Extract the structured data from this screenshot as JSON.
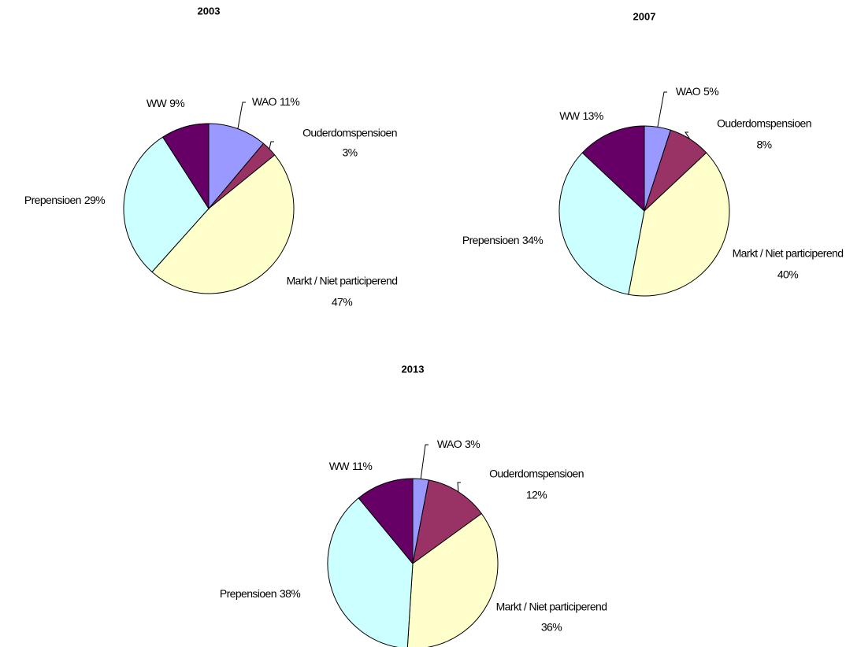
{
  "chart_data": [
    {
      "type": "pie",
      "title": "2003",
      "categories": [
        "WAO",
        "Ouderdomspensioen",
        "Markt / Niet participerend",
        "Prepensioen",
        "WW"
      ],
      "values": [
        11,
        3,
        47,
        29,
        9
      ],
      "value_labels": [
        "11%",
        "3%",
        "47%",
        "29%",
        "9%"
      ],
      "colors": [
        "#9999ff",
        "#993366",
        "#ffffcc",
        "#ccffff",
        "#660066"
      ]
    },
    {
      "type": "pie",
      "title": "2007",
      "categories": [
        "WAO",
        "Ouderdomspensioen",
        "Markt / Niet participerend",
        "Prepensioen",
        "WW"
      ],
      "values": [
        5,
        8,
        40,
        34,
        13
      ],
      "value_labels": [
        "5%",
        "8%",
        "40%",
        "34%",
        "13%"
      ],
      "colors": [
        "#9999ff",
        "#993366",
        "#ffffcc",
        "#ccffff",
        "#660066"
      ]
    },
    {
      "type": "pie",
      "title": "2013",
      "categories": [
        "WAO",
        "Ouderdomspensioen",
        "Markt / Niet participerend",
        "Prepensioen",
        "WW"
      ],
      "values": [
        3,
        12,
        36,
        38,
        11
      ],
      "value_labels": [
        "3%",
        "12%",
        "36%",
        "38%",
        "11%"
      ],
      "colors": [
        "#9999ff",
        "#993366",
        "#ffffcc",
        "#ccffff",
        "#660066"
      ]
    }
  ]
}
